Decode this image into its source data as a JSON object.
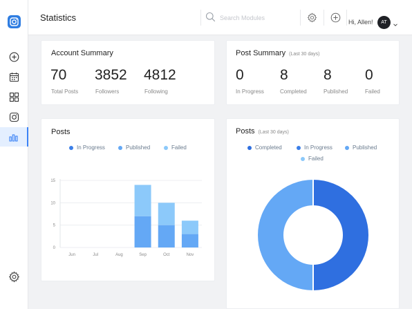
{
  "header": {
    "title": "Statistics",
    "search_placeholder": "Search Modules",
    "greeting": "Hi, Allen!",
    "avatar_initials": "AT"
  },
  "sidebar": {
    "items": [
      {
        "icon": "plus-circle-icon"
      },
      {
        "icon": "calendar-icon"
      },
      {
        "icon": "grid-icon"
      },
      {
        "icon": "instagram-icon"
      },
      {
        "icon": "bar-chart-icon",
        "active": true
      }
    ],
    "bottom_icon": "gear-icon"
  },
  "account_summary": {
    "title": "Account Summary",
    "stats": [
      {
        "value": "70",
        "label": "Total Posts"
      },
      {
        "value": "3852",
        "label": "Followers"
      },
      {
        "value": "4812",
        "label": "Following"
      }
    ]
  },
  "post_summary": {
    "title": "Post Summary",
    "subtitle": "(Last 30 days)",
    "stats": [
      {
        "value": "0",
        "label": "In Progress"
      },
      {
        "value": "8",
        "label": "Completed"
      },
      {
        "value": "8",
        "label": "Published"
      },
      {
        "value": "0",
        "label": "Failed"
      }
    ]
  },
  "posts_bar": {
    "title": "Posts",
    "legend": [
      "In Progress",
      "Published",
      "Failed"
    ]
  },
  "posts_donut": {
    "title": "Posts",
    "subtitle": "(Last 30 days)",
    "legend": [
      "Completed",
      "In Progress",
      "Published",
      "Failed"
    ]
  },
  "colors": {
    "accent": "#3b82f6",
    "in_progress": "#3b7fe8",
    "published": "#64a8f5",
    "failed": "#8cc9fa",
    "completed": "#2f6fe0"
  },
  "chart_data": [
    {
      "type": "bar",
      "stacked": true,
      "categories": [
        "Jun",
        "Jul",
        "Aug",
        "Sep",
        "Oct",
        "Nov"
      ],
      "series": [
        {
          "name": "Published",
          "values": [
            0,
            0,
            0,
            7,
            5,
            3
          ]
        },
        {
          "name": "Failed",
          "values": [
            0,
            0,
            0,
            7,
            5,
            3
          ]
        }
      ],
      "yticks": [
        0,
        5,
        10,
        15
      ],
      "ylim": [
        0,
        15
      ],
      "grid": true
    },
    {
      "type": "pie",
      "donut": true,
      "labels": [
        "Completed",
        "Published"
      ],
      "values": [
        8,
        8
      ]
    }
  ]
}
